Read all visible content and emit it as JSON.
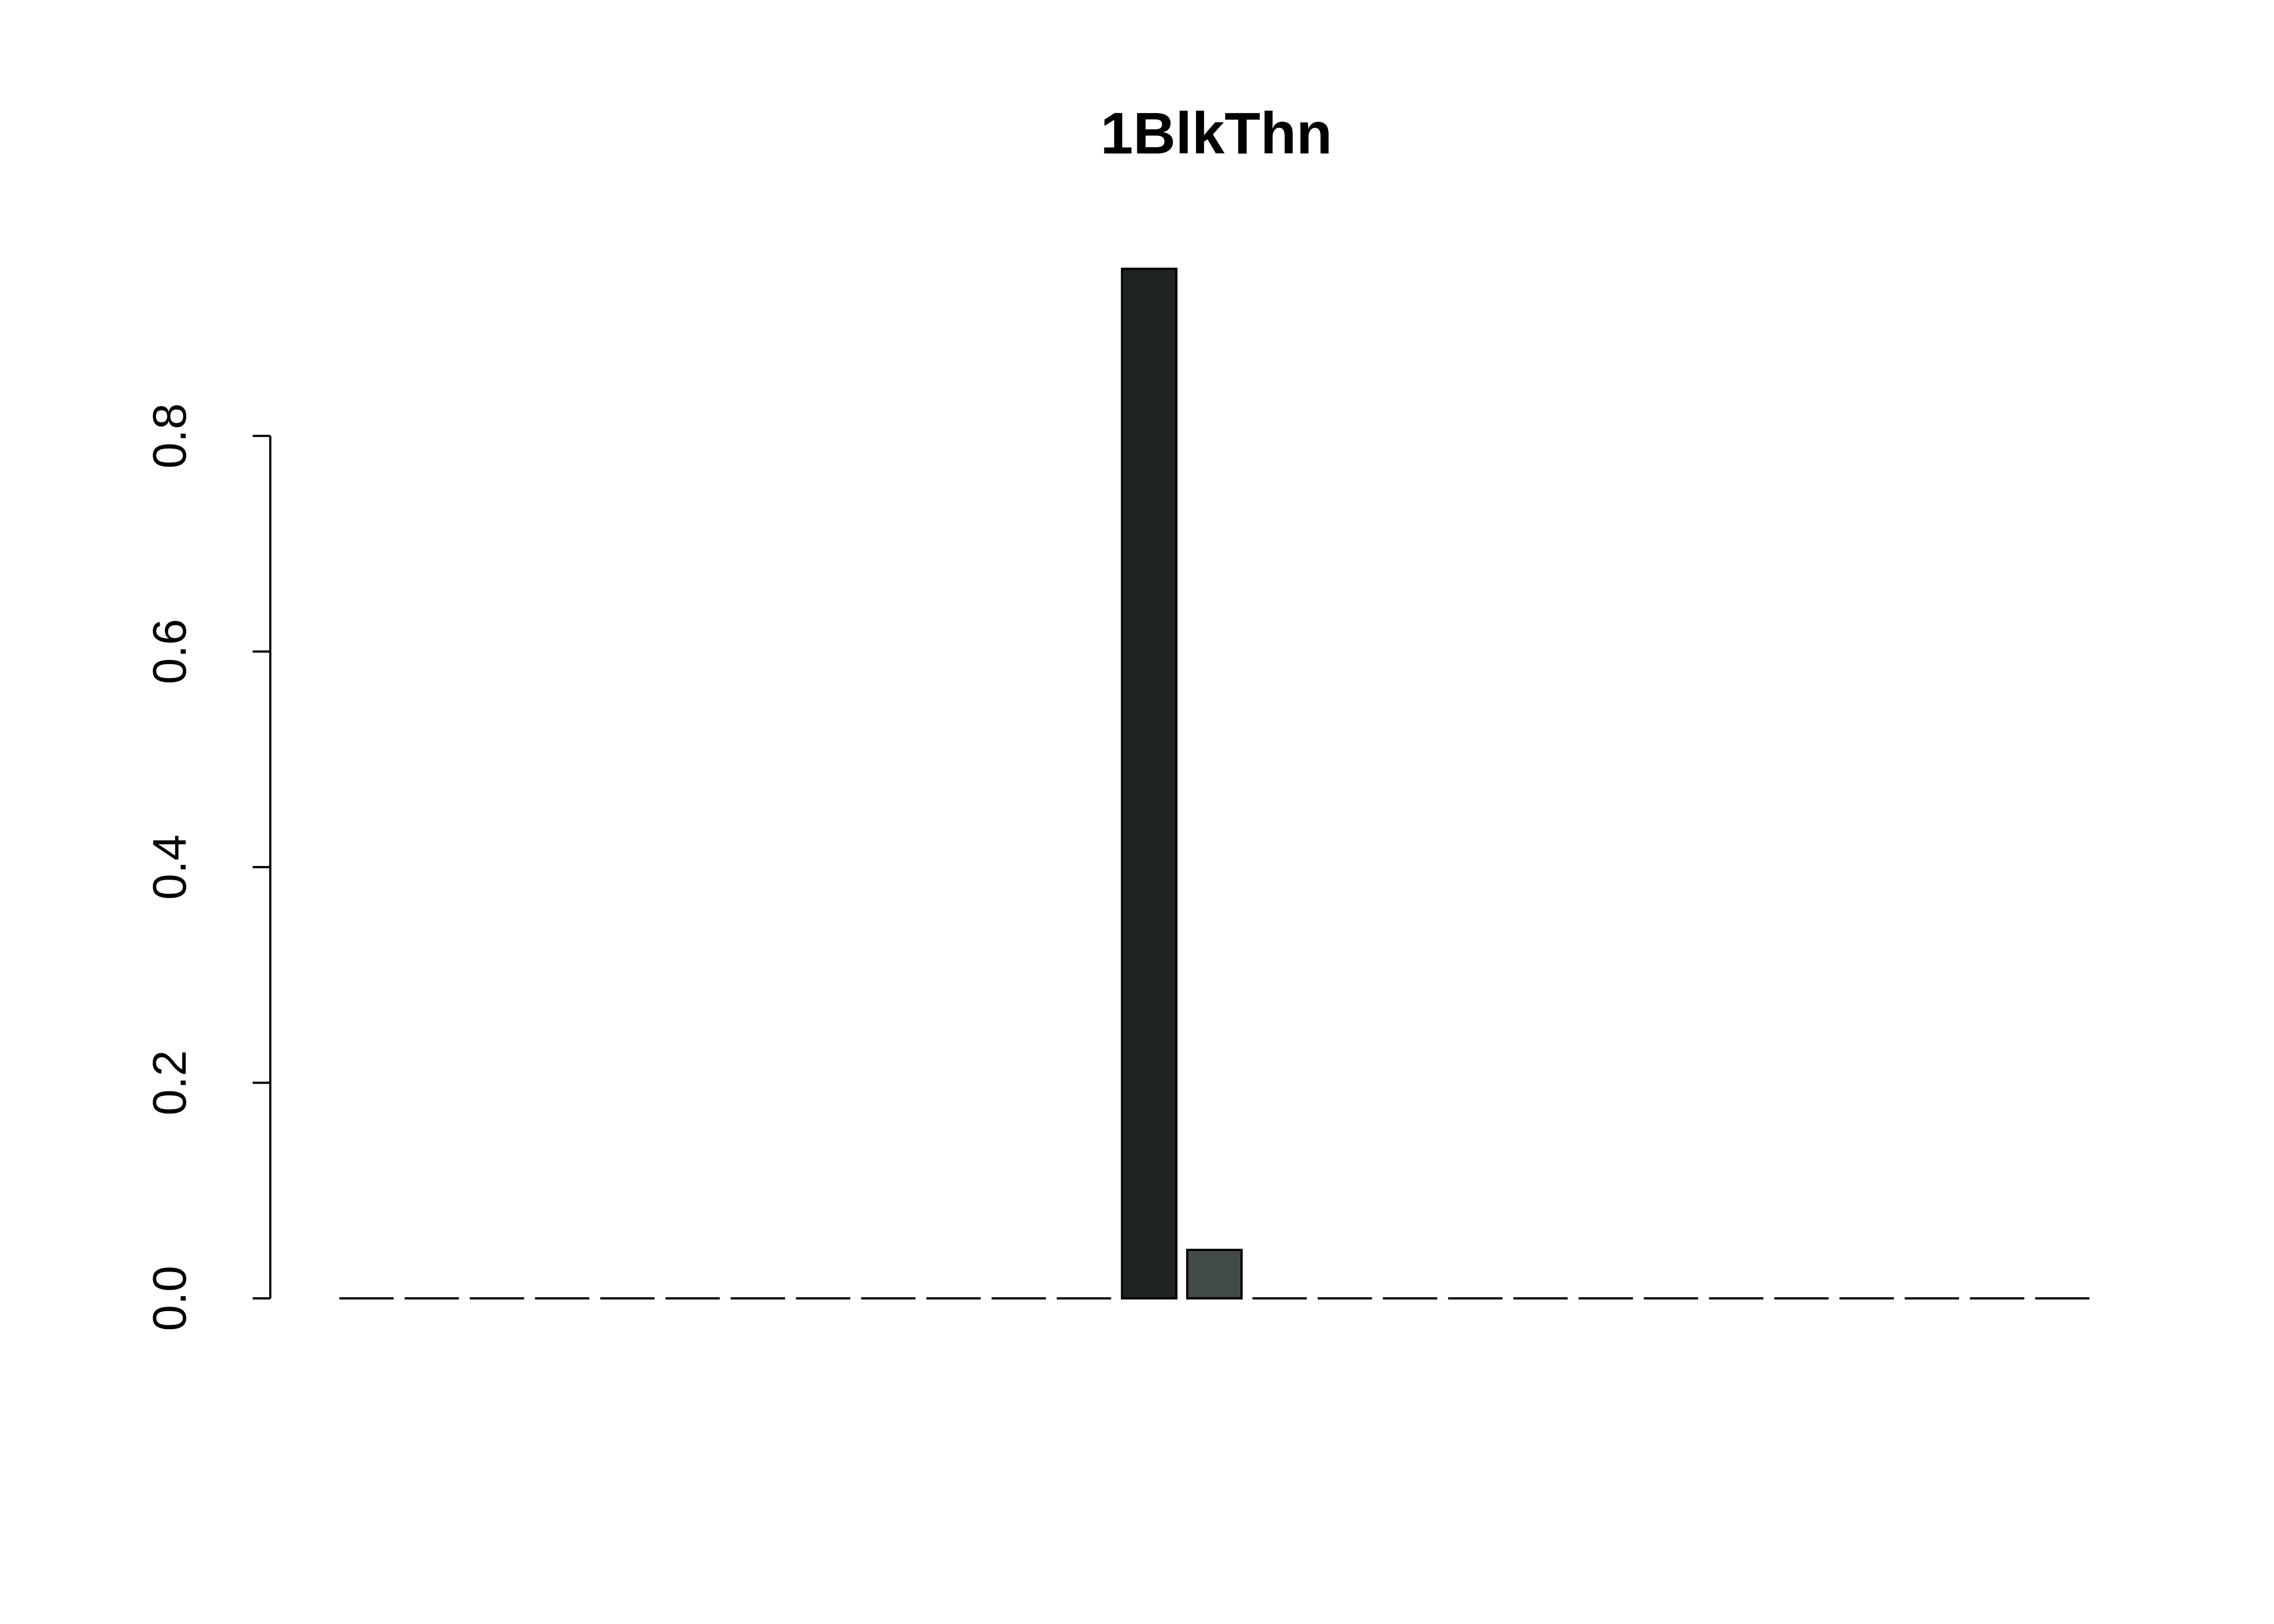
{
  "chart_data": {
    "type": "bar",
    "title": "1BlkThn",
    "categories": [
      null,
      null,
      null,
      null,
      null,
      null,
      null,
      null,
      null,
      null,
      null,
      null,
      null,
      null,
      null,
      null,
      null,
      null,
      null,
      null,
      null,
      null,
      null,
      null,
      null,
      null,
      null
    ],
    "values": [
      0,
      0,
      0,
      0,
      0,
      0,
      0,
      0,
      0,
      0,
      0,
      0,
      0.955,
      0.045,
      0,
      0,
      0,
      0,
      0,
      0,
      0,
      0,
      0,
      0,
      0,
      0,
      0
    ],
    "colors": [
      "#1e2421",
      "#1e2421",
      "#1e2421",
      "#1e2421",
      "#1e2421",
      "#1e2421",
      "#1e2421",
      "#1e2421",
      "#1e2421",
      "#1e2421",
      "#1e2421",
      "#1e2421",
      "#1e2421",
      "#414a45",
      "#1e2421",
      "#1e2421",
      "#1e2421",
      "#1e2421",
      "#1e2421",
      "#1e2421",
      "#1e2421",
      "#1e2421",
      "#1e2421",
      "#1e2421",
      "#1e2421",
      "#1e2421",
      "#1e2421"
    ],
    "ylim": [
      0,
      0.955
    ],
    "yticks": [
      {
        "value": 0,
        "label": "0.0"
      },
      0.2,
      0.4,
      0.6,
      0.8
    ],
    "grid": false
  }
}
